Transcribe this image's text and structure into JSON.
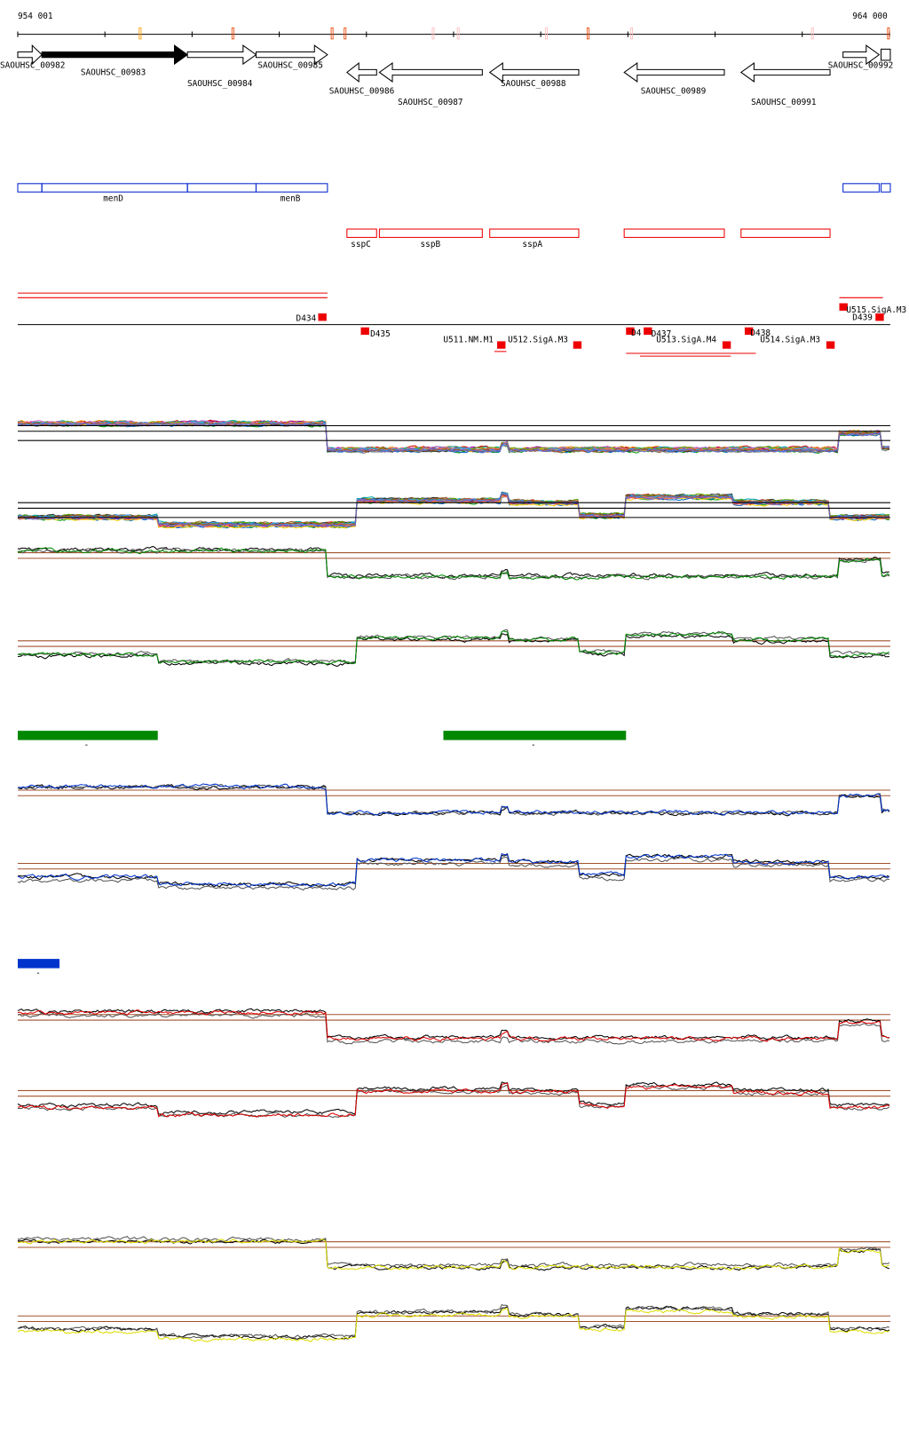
{
  "ruler": {
    "start": "954 001",
    "end": "964 000"
  },
  "genes": [
    "SAOUHSC_00982",
    "SAOUHSC_00983",
    "SAOUHSC_00984",
    "SAOUHSC_00985",
    "SAOUHSC_00986",
    "SAOUHSC_00987",
    "SAOUHSC_00988",
    "SAOUHSC_00989",
    "SAOUHSC_00991",
    "SAOUHSC_00992"
  ],
  "operons": [
    "menD",
    "menB"
  ],
  "regions": [
    "sspC",
    "sspB",
    "sspA"
  ],
  "promoters": [
    "D434",
    "D435",
    "U511.NM.M1",
    "U512.SigA.M3",
    "D4",
    "D437",
    "U513.SigA.M4",
    "D438",
    "U514.SigA.M3",
    "U515.SigA.M3",
    "D439"
  ],
  "track_labels": [
    "-",
    "-",
    "-"
  ]
}
